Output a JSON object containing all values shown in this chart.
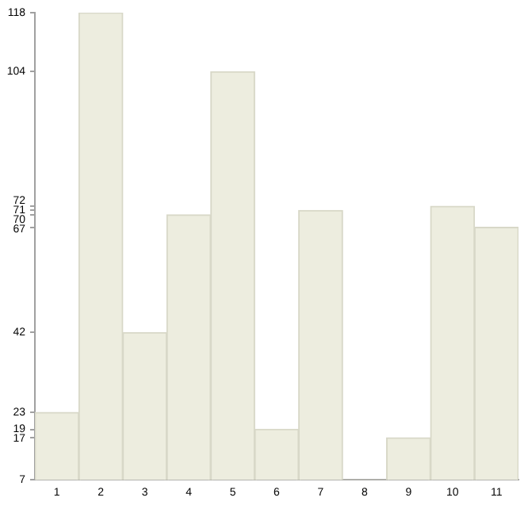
{
  "chart_data": {
    "type": "bar",
    "categories": [
      "1",
      "2",
      "3",
      "4",
      "5",
      "6",
      "7",
      "8",
      "9",
      "10",
      "11"
    ],
    "values": [
      23,
      118,
      42,
      70,
      104,
      19,
      71,
      7,
      17,
      72,
      67
    ],
    "color": "#ededdf",
    "ylim": [
      7,
      118
    ],
    "yticks": [
      7,
      17,
      19,
      23,
      42,
      67,
      70,
      71,
      72,
      104,
      118
    ]
  }
}
